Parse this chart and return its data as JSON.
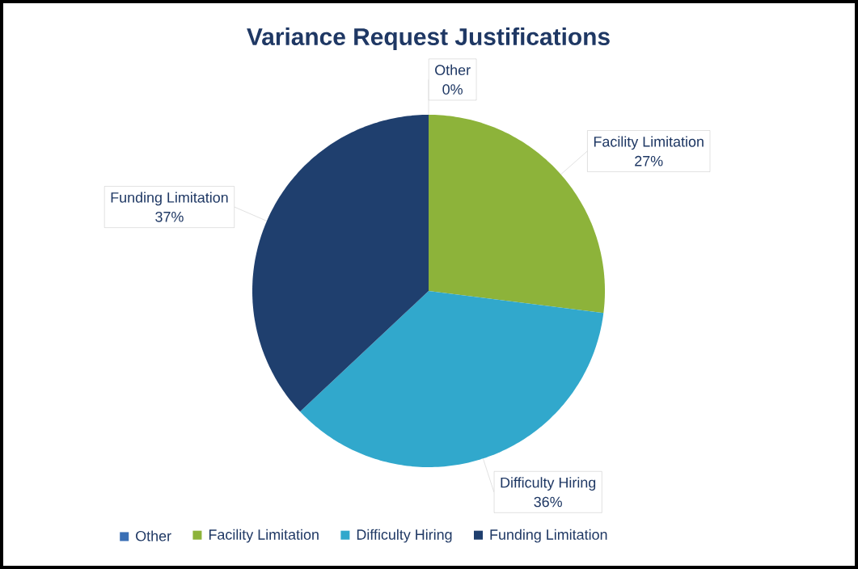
{
  "chart_data": {
    "type": "pie",
    "title": "Variance Request Justifications",
    "categories": [
      "Other",
      "Facility Limitation",
      "Difficulty Hiring",
      "Funding Limitation"
    ],
    "values": [
      0,
      27,
      36,
      37
    ],
    "value_labels": [
      "0%",
      "27%",
      "36%",
      "37%"
    ],
    "colors": [
      "#3a6fb5",
      "#8db33a",
      "#31a8cc",
      "#1f3f6e"
    ],
    "legend": "bottom"
  }
}
